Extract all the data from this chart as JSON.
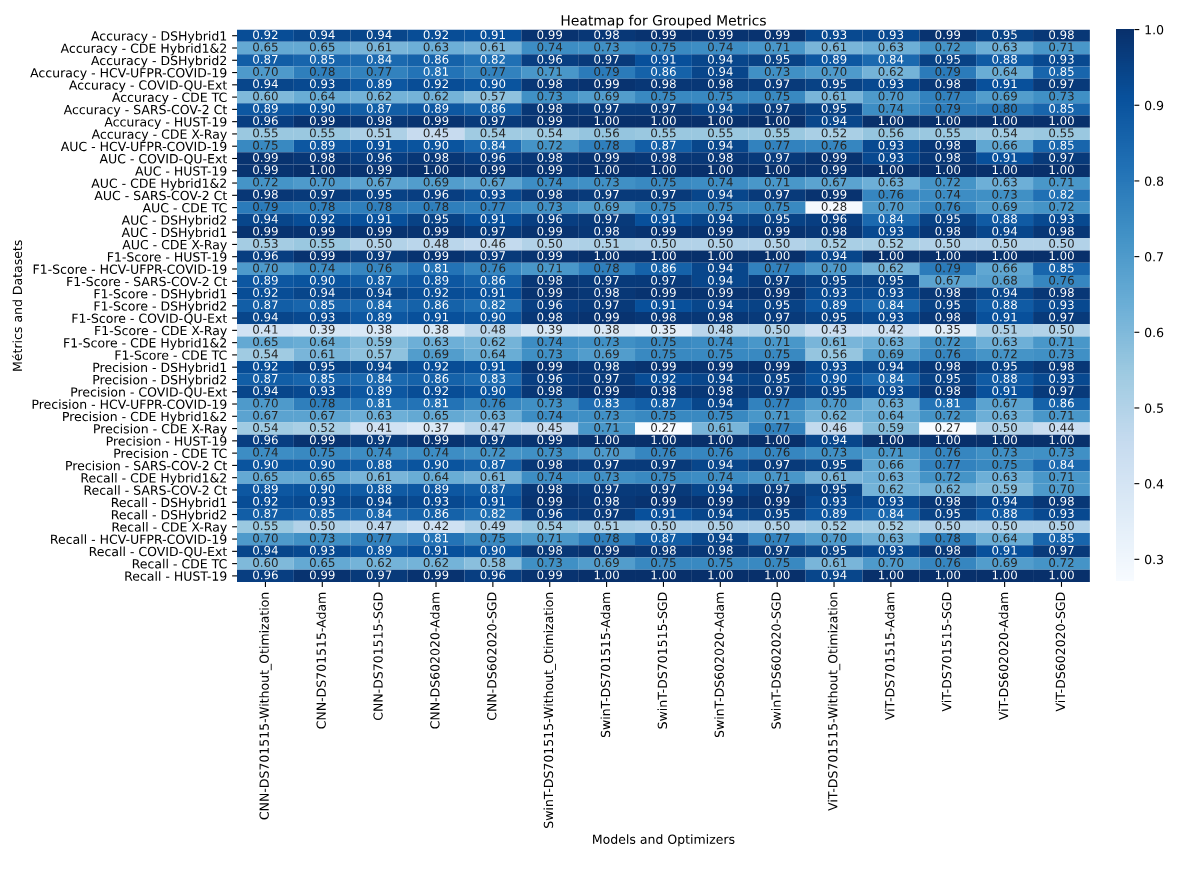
{
  "chart_data": {
    "type": "heatmap",
    "title": "Heatmap for Grouped Metrics",
    "xlabel": "Models and Optimizers",
    "ylabel": "Métrics and Datasets",
    "categories": [
      "CNN-DS701515-Without_Otimization",
      "CNN-DS701515-Adam",
      "CNN-DS701515-SGD",
      "CNN-DS602020-Adam",
      "CNN-DS602020-SGD",
      "SwinT-DS701515-Without_Otimization",
      "SwinT-DS701515-Adam",
      "SwinT-DS701515-SGD",
      "SwinT-DS602020-Adam",
      "SwinT-DS602020-SGD",
      "ViT-DS701515-Without_Otimization",
      "ViT-DS701515-Adam",
      "ViT-DS701515-SGD",
      "ViT-DS602020-Adam",
      "ViT-DS602020-SGD"
    ],
    "y_categories": [
      "Accuracy - DSHybrid1",
      "Accuracy - CDE Hybrid1&2",
      "Accuracy - DSHybrid2",
      "Accuracy - HCV-UFPR-COVID-19",
      "Accuracy - COVID-QU-Ext",
      "Accuracy - CDE TC",
      "Accuracy - SARS-COV-2 Ct",
      "Accuracy - HUST-19",
      "Accuracy - CDE X-Ray",
      "AUC - HCV-UFPR-COVID-19",
      "AUC - COVID-QU-Ext",
      "AUC - HUST-19",
      "AUC - CDE Hybrid1&2",
      "AUC - SARS-COV-2 Ct",
      "AUC - CDE TC",
      "AUC - DSHybrid2",
      "AUC - DSHybrid1",
      "AUC - CDE X-Ray",
      "F1-Score - HUST-19",
      "F1-Score - HCV-UFPR-COVID-19",
      "F1-Score - SARS-COV-2 Ct",
      "F1-Score - DSHybrid1",
      "F1-Score - DSHybrid2",
      "F1-Score - COVID-QU-Ext",
      "F1-Score - CDE X-Ray",
      "F1-Score - CDE Hybrid1&2",
      "F1-Score - CDE TC",
      "Precision - DSHybrid1",
      "Precision - DSHybrid2",
      "Precision - COVID-QU-Ext",
      "Precision - HCV-UFPR-COVID-19",
      "Precision - CDE Hybrid1&2",
      "Precision - CDE X-Ray",
      "Precision - HUST-19",
      "Precision - CDE TC",
      "Precision - SARS-COV-2 Ct",
      "Recall - CDE Hybrid1&2",
      "Recall - SARS-COV-2 Ct",
      "Recall - DSHybrid1",
      "Recall - DSHybrid2",
      "Recall - CDE X-Ray",
      "Recall - HCV-UFPR-COVID-19",
      "Recall - COVID-QU-Ext",
      "Recall - CDE TC",
      "Recall - HUST-19"
    ],
    "cells": [
      [
        0.92,
        0.94,
        0.94,
        0.92,
        0.91,
        0.99,
        0.98,
        0.99,
        0.99,
        0.99,
        0.93,
        0.93,
        0.99,
        0.95,
        0.98
      ],
      [
        0.65,
        0.65,
        0.61,
        0.63,
        0.61,
        0.74,
        0.73,
        0.75,
        0.74,
        0.71,
        0.61,
        0.63,
        0.72,
        0.63,
        0.71
      ],
      [
        0.87,
        0.85,
        0.84,
        0.86,
        0.82,
        0.96,
        0.97,
        0.91,
        0.94,
        0.95,
        0.89,
        0.84,
        0.95,
        0.88,
        0.93
      ],
      [
        0.7,
        0.78,
        0.77,
        0.81,
        0.77,
        0.71,
        0.79,
        0.86,
        0.94,
        0.73,
        0.7,
        0.62,
        0.79,
        0.64,
        0.85
      ],
      [
        0.94,
        0.93,
        0.89,
        0.92,
        0.9,
        0.98,
        0.99,
        0.98,
        0.98,
        0.97,
        0.95,
        0.93,
        0.98,
        0.91,
        0.97
      ],
      [
        0.6,
        0.64,
        0.62,
        0.62,
        0.57,
        0.73,
        0.69,
        0.75,
        0.75,
        0.75,
        0.61,
        0.7,
        0.77,
        0.69,
        0.73
      ],
      [
        0.89,
        0.9,
        0.87,
        0.89,
        0.86,
        0.98,
        0.97,
        0.97,
        0.94,
        0.97,
        0.95,
        0.74,
        0.79,
        0.8,
        0.85
      ],
      [
        0.96,
        0.99,
        0.98,
        0.99,
        0.97,
        0.99,
        1.0,
        1.0,
        1.0,
        1.0,
        0.94,
        1.0,
        1.0,
        1.0,
        1.0
      ],
      [
        0.55,
        0.55,
        0.51,
        0.45,
        0.54,
        0.54,
        0.56,
        0.55,
        0.55,
        0.55,
        0.52,
        0.56,
        0.55,
        0.54,
        0.55
      ],
      [
        0.75,
        0.89,
        0.91,
        0.9,
        0.84,
        0.72,
        0.78,
        0.87,
        0.94,
        0.77,
        0.76,
        0.93,
        0.98,
        0.66,
        0.85
      ],
      [
        0.99,
        0.98,
        0.96,
        0.98,
        0.96,
        0.98,
        0.99,
        0.98,
        0.98,
        0.97,
        0.99,
        0.93,
        0.98,
        0.91,
        0.97
      ],
      [
        0.99,
        1.0,
        0.99,
        1.0,
        0.99,
        0.99,
        1.0,
        1.0,
        1.0,
        1.0,
        0.99,
        1.0,
        1.0,
        1.0,
        1.0
      ],
      [
        0.72,
        0.7,
        0.67,
        0.69,
        0.67,
        0.74,
        0.73,
        0.75,
        0.74,
        0.71,
        0.67,
        0.63,
        0.72,
        0.63,
        0.71
      ],
      [
        0.98,
        0.97,
        0.95,
        0.96,
        0.93,
        0.98,
        0.97,
        0.97,
        0.94,
        0.97,
        0.99,
        0.76,
        0.74,
        0.73,
        0.82
      ],
      [
        0.79,
        0.78,
        0.78,
        0.78,
        0.77,
        0.73,
        0.69,
        0.75,
        0.75,
        0.75,
        0.28,
        0.7,
        0.76,
        0.69,
        0.72
      ],
      [
        0.94,
        0.92,
        0.91,
        0.95,
        0.91,
        0.96,
        0.97,
        0.91,
        0.94,
        0.95,
        0.96,
        0.84,
        0.95,
        0.88,
        0.93
      ],
      [
        0.99,
        0.99,
        0.99,
        0.99,
        0.97,
        0.99,
        0.98,
        0.99,
        0.99,
        0.99,
        0.98,
        0.93,
        0.98,
        0.94,
        0.98
      ],
      [
        0.53,
        0.55,
        0.5,
        0.48,
        0.46,
        0.5,
        0.51,
        0.5,
        0.5,
        0.5,
        0.52,
        0.52,
        0.5,
        0.5,
        0.5
      ],
      [
        0.96,
        0.99,
        0.97,
        0.99,
        0.97,
        0.99,
        1.0,
        1.0,
        1.0,
        1.0,
        0.94,
        1.0,
        1.0,
        1.0,
        1.0
      ],
      [
        0.7,
        0.74,
        0.76,
        0.81,
        0.76,
        0.71,
        0.78,
        0.86,
        0.94,
        0.77,
        0.7,
        0.62,
        0.79,
        0.66,
        0.85
      ],
      [
        0.89,
        0.9,
        0.87,
        0.89,
        0.86,
        0.98,
        0.97,
        0.97,
        0.94,
        0.97,
        0.95,
        0.95,
        0.67,
        0.68,
        0.76
      ],
      [
        0.92,
        0.94,
        0.94,
        0.92,
        0.91,
        0.99,
        0.98,
        0.99,
        0.99,
        0.99,
        0.93,
        0.93,
        0.98,
        0.94,
        0.98
      ],
      [
        0.87,
        0.85,
        0.84,
        0.86,
        0.82,
        0.96,
        0.97,
        0.91,
        0.94,
        0.95,
        0.89,
        0.84,
        0.95,
        0.88,
        0.93
      ],
      [
        0.94,
        0.93,
        0.89,
        0.91,
        0.9,
        0.98,
        0.99,
        0.98,
        0.98,
        0.97,
        0.95,
        0.93,
        0.98,
        0.91,
        0.97
      ],
      [
        0.41,
        0.39,
        0.38,
        0.38,
        0.48,
        0.39,
        0.38,
        0.35,
        0.48,
        0.5,
        0.43,
        0.42,
        0.35,
        0.51,
        0.5
      ],
      [
        0.65,
        0.64,
        0.59,
        0.63,
        0.62,
        0.74,
        0.73,
        0.75,
        0.74,
        0.71,
        0.61,
        0.63,
        0.72,
        0.63,
        0.71
      ],
      [
        0.54,
        0.61,
        0.57,
        0.69,
        0.64,
        0.73,
        0.69,
        0.75,
        0.75,
        0.75,
        0.56,
        0.69,
        0.76,
        0.72,
        0.73
      ],
      [
        0.92,
        0.95,
        0.94,
        0.92,
        0.91,
        0.99,
        0.98,
        0.99,
        0.99,
        0.99,
        0.93,
        0.94,
        0.98,
        0.95,
        0.98
      ],
      [
        0.87,
        0.85,
        0.84,
        0.86,
        0.83,
        0.96,
        0.97,
        0.92,
        0.94,
        0.95,
        0.9,
        0.84,
        0.95,
        0.88,
        0.93
      ],
      [
        0.94,
        0.93,
        0.89,
        0.92,
        0.9,
        0.98,
        0.99,
        0.98,
        0.98,
        0.97,
        0.95,
        0.93,
        0.98,
        0.91,
        0.97
      ],
      [
        0.7,
        0.78,
        0.81,
        0.81,
        0.76,
        0.73,
        0.83,
        0.87,
        0.94,
        0.77,
        0.7,
        0.63,
        0.81,
        0.67,
        0.86
      ],
      [
        0.67,
        0.67,
        0.63,
        0.65,
        0.63,
        0.74,
        0.73,
        0.75,
        0.75,
        0.71,
        0.62,
        0.64,
        0.72,
        0.63,
        0.71
      ],
      [
        0.54,
        0.52,
        0.41,
        0.37,
        0.47,
        0.45,
        0.71,
        0.27,
        0.61,
        0.77,
        0.46,
        0.59,
        0.27,
        0.5,
        0.44
      ],
      [
        0.96,
        0.99,
        0.97,
        0.99,
        0.97,
        0.99,
        1.0,
        1.0,
        1.0,
        1.0,
        0.94,
        1.0,
        1.0,
        1.0,
        1.0
      ],
      [
        0.74,
        0.75,
        0.74,
        0.74,
        0.72,
        0.73,
        0.7,
        0.76,
        0.76,
        0.76,
        0.73,
        0.71,
        0.76,
        0.73,
        0.73
      ],
      [
        0.9,
        0.9,
        0.88,
        0.9,
        0.87,
        0.98,
        0.97,
        0.97,
        0.94,
        0.97,
        0.95,
        0.66,
        0.77,
        0.75,
        0.84
      ],
      [
        0.65,
        0.65,
        0.61,
        0.64,
        0.61,
        0.74,
        0.73,
        0.75,
        0.74,
        0.71,
        0.61,
        0.63,
        0.72,
        0.63,
        0.71
      ],
      [
        0.89,
        0.9,
        0.88,
        0.89,
        0.87,
        0.98,
        0.97,
        0.97,
        0.94,
        0.97,
        0.95,
        0.62,
        0.62,
        0.59,
        0.7
      ],
      [
        0.92,
        0.93,
        0.94,
        0.93,
        0.91,
        0.99,
        0.98,
        0.99,
        0.99,
        0.99,
        0.93,
        0.93,
        0.98,
        0.94,
        0.98
      ],
      [
        0.87,
        0.85,
        0.84,
        0.86,
        0.82,
        0.96,
        0.97,
        0.91,
        0.94,
        0.95,
        0.89,
        0.84,
        0.95,
        0.88,
        0.93
      ],
      [
        0.55,
        0.5,
        0.47,
        0.42,
        0.49,
        0.54,
        0.51,
        0.5,
        0.5,
        0.5,
        0.52,
        0.52,
        0.5,
        0.5,
        0.5
      ],
      [
        0.7,
        0.73,
        0.77,
        0.81,
        0.75,
        0.71,
        0.78,
        0.87,
        0.94,
        0.77,
        0.7,
        0.63,
        0.78,
        0.64,
        0.85
      ],
      [
        0.94,
        0.93,
        0.89,
        0.91,
        0.9,
        0.98,
        0.99,
        0.98,
        0.98,
        0.97,
        0.95,
        0.93,
        0.98,
        0.91,
        0.97
      ],
      [
        0.6,
        0.65,
        0.62,
        0.62,
        0.58,
        0.73,
        0.69,
        0.75,
        0.75,
        0.75,
        0.61,
        0.7,
        0.76,
        0.69,
        0.72
      ],
      [
        0.96,
        0.99,
        0.97,
        0.99,
        0.96,
        0.99,
        1.0,
        1.0,
        1.0,
        1.0,
        0.94,
        1.0,
        1.0,
        1.0,
        1.0
      ]
    ],
    "cell_labels": [
      [
        "0.92",
        "0.94",
        "0.94",
        "0.92",
        "0.91",
        "0.99",
        "0.98",
        "0.99",
        "0.99",
        "0.99",
        "0.93",
        "0.93",
        "0.99",
        "0.95",
        "0.98"
      ],
      [
        "0.65",
        "0.65",
        "0.61",
        "0.63",
        "0.61",
        "0.74",
        "0.73",
        "0.75",
        "0.74",
        "0.71",
        "0.61",
        "0.63",
        "0.72",
        "0.63",
        "0.71"
      ],
      [
        "0.87",
        "0.85",
        "0.84",
        "0.86",
        "0.82",
        "0.96",
        "0.97",
        "0.91",
        "0.94",
        "0.95",
        "0.89",
        "0.84",
        "0.95",
        "0.88",
        "0.93"
      ],
      [
        "0.70",
        "0.78",
        "0.77",
        "0.81",
        "0.77",
        "0.71",
        "0.79",
        "0.86",
        "0.94",
        "0.73",
        "0.70",
        "0.62",
        "0.79",
        "0.64",
        "0.85"
      ],
      [
        "0.94",
        "0.93",
        "0.89",
        "0.92",
        "0.90",
        "0.98",
        "0.99",
        "0.98",
        "0.98",
        "0.97",
        "0.95",
        "0.93",
        "0.98",
        "0.91",
        "0.97"
      ],
      [
        "0.60",
        "0.64",
        "0.62",
        "0.62",
        "0.57",
        "0.73",
        "0.69",
        "0.75",
        "0.75",
        "0.75",
        "0.61",
        "0.70",
        "0.77",
        "0.69",
        "0.73"
      ],
      [
        "0.89",
        "0.90",
        "0.87",
        "0.89",
        "0.86",
        "0.98",
        "0.97",
        "0.97",
        "0.94",
        "0.97",
        "0.95",
        "0.74",
        "0.79",
        "0.80",
        "0.85"
      ],
      [
        "0.96",
        "0.99",
        "0.98",
        "0.99",
        "0.97",
        "0.99",
        "1.00",
        "1.00",
        "1.00",
        "1.00",
        "0.94",
        "1.00",
        "1.00",
        "1.00",
        "1.00"
      ],
      [
        "0.55",
        "0.55",
        "0.51",
        "0.45",
        "0.54",
        "0.54",
        "0.56",
        "0.55",
        "0.55",
        "0.55",
        "0.52",
        "0.56",
        "0.55",
        "0.54",
        "0.55"
      ],
      [
        "0.75",
        "0.89",
        "0.91",
        "0.90",
        "0.84",
        "0.72",
        "0.78",
        "0.87",
        "0.94",
        "0.77",
        "0.76",
        "0.93",
        "0.98",
        "0.66",
        "0.85"
      ],
      [
        "0.99",
        "0.98",
        "0.96",
        "0.98",
        "0.96",
        "0.98",
        "0.99",
        "0.98",
        "0.98",
        "0.97",
        "0.99",
        "0.93",
        "0.98",
        "0.91",
        "0.97"
      ],
      [
        "0.99",
        "1.00",
        "0.99",
        "1.00",
        "0.99",
        "0.99",
        "1.00",
        "1.00",
        "1.00",
        "1.00",
        "0.99",
        "1.00",
        "1.00",
        "1.00",
        "1.00"
      ],
      [
        "0.72",
        "0.70",
        "0.67",
        "0.69",
        "0.67",
        "0.74",
        "0.73",
        "0.75",
        "0.74",
        "0.71",
        "0.67",
        "0.63",
        "0.72",
        "0.63",
        "0.71"
      ],
      [
        "0.98",
        "0.97",
        "0.95",
        "0.96",
        "0.93",
        "0.98",
        "0.97",
        "0.97",
        "0.94",
        "0.97",
        "0.99",
        "0.76",
        "0.74",
        "0.73",
        "0.82"
      ],
      [
        "0.79",
        "0.78",
        "0.78",
        "0.78",
        "0.77",
        "0.73",
        "0.69",
        "0.75",
        "0.75",
        "0.75",
        "0.28",
        "0.70",
        "0.76",
        "0.69",
        "0.72"
      ],
      [
        "0.94",
        "0.92",
        "0.91",
        "0.95",
        "0.91",
        "0.96",
        "0.97",
        "0.91",
        "0.94",
        "0.95",
        "0.96",
        "0.84",
        "0.95",
        "0.88",
        "0.93"
      ],
      [
        "0.99",
        "0.99",
        "0.99",
        "0.99",
        "0.97",
        "0.99",
        "0.98",
        "0.99",
        "0.99",
        "0.99",
        "0.98",
        "0.93",
        "0.98",
        "0.94",
        "0.98"
      ],
      [
        "0.53",
        "0.55",
        "0.50",
        "0.48",
        "0.46",
        "0.50",
        "0.51",
        "0.50",
        "0.50",
        "0.50",
        "0.52",
        "0.52",
        "0.50",
        "0.50",
        "0.50"
      ],
      [
        "0.96",
        "0.99",
        "0.97",
        "0.99",
        "0.97",
        "0.99",
        "1.00",
        "1.00",
        "1.00",
        "1.00",
        "0.94",
        "1.00",
        "1.00",
        "1.00",
        "1.00"
      ],
      [
        "0.70",
        "0.74",
        "0.76",
        "0.81",
        "0.76",
        "0.71",
        "0.78",
        "0.86",
        "0.94",
        "0.77",
        "0.70",
        "0.62",
        "0.79",
        "0.66",
        "0.85"
      ],
      [
        "0.89",
        "0.90",
        "0.87",
        "0.89",
        "0.86",
        "0.98",
        "0.97",
        "0.97",
        "0.94",
        "0.97",
        "0.95",
        "0.95",
        "0.67",
        "0.68",
        "0.76"
      ],
      [
        "0.92",
        "0.94",
        "0.94",
        "0.92",
        "0.91",
        "0.99",
        "0.98",
        "0.99",
        "0.99",
        "0.99",
        "0.93",
        "0.93",
        "0.98",
        "0.94",
        "0.98"
      ],
      [
        "0.87",
        "0.85",
        "0.84",
        "0.86",
        "0.82",
        "0.96",
        "0.97",
        "0.91",
        "0.94",
        "0.95",
        "0.89",
        "0.84",
        "0.95",
        "0.88",
        "0.93"
      ],
      [
        "0.94",
        "0.93",
        "0.89",
        "0.91",
        "0.90",
        "0.98",
        "0.99",
        "0.98",
        "0.98",
        "0.97",
        "0.95",
        "0.93",
        "0.98",
        "0.91",
        "0.97"
      ],
      [
        "0.41",
        "0.39",
        "0.38",
        "0.38",
        "0.48",
        "0.39",
        "0.38",
        "0.35",
        "0.48",
        "0.50",
        "0.43",
        "0.42",
        "0.35",
        "0.51",
        "0.50"
      ],
      [
        "0.65",
        "0.64",
        "0.59",
        "0.63",
        "0.62",
        "0.74",
        "0.73",
        "0.75",
        "0.74",
        "0.71",
        "0.61",
        "0.63",
        "0.72",
        "0.63",
        "0.71"
      ],
      [
        "0.54",
        "0.61",
        "0.57",
        "0.69",
        "0.64",
        "0.73",
        "0.69",
        "0.75",
        "0.75",
        "0.75",
        "0.56",
        "0.69",
        "0.76",
        "0.72",
        "0.73"
      ],
      [
        "0.92",
        "0.95",
        "0.94",
        "0.92",
        "0.91",
        "0.99",
        "0.98",
        "0.99",
        "0.99",
        "0.99",
        "0.93",
        "0.94",
        "0.98",
        "0.95",
        "0.98"
      ],
      [
        "0.87",
        "0.85",
        "0.84",
        "0.86",
        "0.83",
        "0.96",
        "0.97",
        "0.92",
        "0.94",
        "0.95",
        "0.90",
        "0.84",
        "0.95",
        "0.88",
        "0.93"
      ],
      [
        "0.94",
        "0.93",
        "0.89",
        "0.92",
        "0.90",
        "0.98",
        "0.99",
        "0.98",
        "0.98",
        "0.97",
        "0.95",
        "0.93",
        "0.98",
        "0.91",
        "0.97"
      ],
      [
        "0.70",
        "0.78",
        "0.81",
        "0.81",
        "0.76",
        "0.73",
        "0.83",
        "0.87",
        "0.94",
        "0.77",
        "0.70",
        "0.63",
        "0.81",
        "0.67",
        "0.86"
      ],
      [
        "0.67",
        "0.67",
        "0.63",
        "0.65",
        "0.63",
        "0.74",
        "0.73",
        "0.75",
        "0.75",
        "0.71",
        "0.62",
        "0.64",
        "0.72",
        "0.63",
        "0.71"
      ],
      [
        "0.54",
        "0.52",
        "0.41",
        "0.37",
        "0.47",
        "0.45",
        "0.71",
        "0.27",
        "0.61",
        "0.77",
        "0.46",
        "0.59",
        "0.27",
        "0.50",
        "0.44"
      ],
      [
        "0.96",
        "0.99",
        "0.97",
        "0.99",
        "0.97",
        "0.99",
        "1.00",
        "1.00",
        "1.00",
        "1.00",
        "0.94",
        "1.00",
        "1.00",
        "1.00",
        "1.00"
      ],
      [
        "0.74",
        "0.75",
        "0.74",
        "0.74",
        "0.72",
        "0.73",
        "0.70",
        "0.76",
        "0.76",
        "0.76",
        "0.73",
        "0.71",
        "0.76",
        "0.73",
        "0.73"
      ],
      [
        "0.90",
        "0.90",
        "0.88",
        "0.90",
        "0.87",
        "0.98",
        "0.97",
        "0.97",
        "0.94",
        "0.97",
        "0.95",
        "0.66",
        "0.77",
        "0.75",
        "0.84"
      ],
      [
        "0.65",
        "0.65",
        "0.61",
        "0.64",
        "0.61",
        "0.74",
        "0.73",
        "0.75",
        "0.74",
        "0.71",
        "0.61",
        "0.63",
        "0.72",
        "0.63",
        "0.71"
      ],
      [
        "0.89",
        "0.90",
        "0.88",
        "0.89",
        "0.87",
        "0.98",
        "0.97",
        "0.97",
        "0.94",
        "0.97",
        "0.95",
        "0.62",
        "0.62",
        "0.59",
        "0.70"
      ],
      [
        "0.92",
        "0.93",
        "0.94",
        "0.93",
        "0.91",
        "0.99",
        "0.98",
        "0.99",
        "0.99",
        "0.99",
        "0.93",
        "0.93",
        "0.98",
        "0.94",
        "0.98"
      ],
      [
        "0.87",
        "0.85",
        "0.84",
        "0.86",
        "0.82",
        "0.96",
        "0.97",
        "0.91",
        "0.94",
        "0.95",
        "0.89",
        "0.84",
        "0.95",
        "0.88",
        "0.93"
      ],
      [
        "0.55",
        "0.50",
        "0.47",
        "0.42",
        "0.49",
        "0.54",
        "0.51",
        "0.50",
        "0.50",
        "0.50",
        "0.52",
        "0.52",
        "0.50",
        "0.50",
        "0.50"
      ],
      [
        "0.70",
        "0.73",
        "0.77",
        "0.81",
        "0.75",
        "0.71",
        "0.78",
        "0.87",
        "0.94",
        "0.77",
        "0.70",
        "0.63",
        "0.78",
        "0.64",
        "0.85"
      ],
      [
        "0.94",
        "0.93",
        "0.89",
        "0.91",
        "0.90",
        "0.98",
        "0.99",
        "0.98",
        "0.98",
        "0.97",
        "0.95",
        "0.93",
        "0.98",
        "0.91",
        "0.97"
      ],
      [
        "0.60",
        "0.65",
        "0.62",
        "0.62",
        "0.58",
        "0.73",
        "0.69",
        "0.75",
        "0.75",
        "0.75",
        "0.61",
        "0.70",
        "0.76",
        "0.69",
        "0.72"
      ],
      [
        "0.96",
        "0.99",
        "0.97",
        "0.99",
        "0.96",
        "0.99",
        "1.00",
        "1.00",
        "1.00",
        "1.00",
        "0.94",
        "1.00",
        "1.00",
        "1.00",
        "1.00"
      ]
    ],
    "clim": [
      0.27,
      1.0
    ],
    "cticks": [
      0.3,
      0.4,
      0.5,
      0.6,
      0.7,
      0.8,
      0.9,
      {
        "value": 1.0,
        "label": "1.0"
      }
    ]
  }
}
